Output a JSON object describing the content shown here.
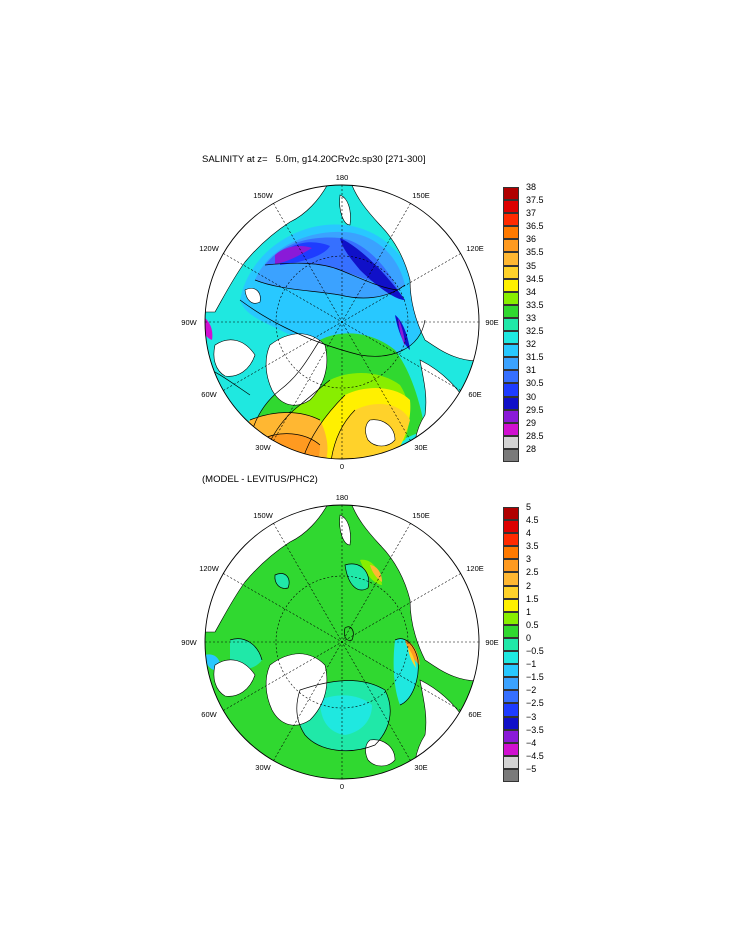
{
  "panels": [
    {
      "title": "SALINITY at z=   5.0m, g14.20CRv2c.sp30 [271-300]",
      "colorbar": {
        "labels": [
          "38",
          "37.5",
          "37",
          "36.5",
          "36",
          "35.5",
          "35",
          "34.5",
          "34",
          "33.5",
          "33",
          "32.5",
          "32",
          "31.5",
          "31",
          "30.5",
          "30",
          "29.5",
          "29",
          "28.5",
          "28"
        ],
        "colors": [
          "#b00000",
          "#dd0000",
          "#ff2a00",
          "#ff7a00",
          "#ff9a20",
          "#ffb732",
          "#ffd22a",
          "#fff000",
          "#88ee00",
          "#30d830",
          "#20e8a8",
          "#1fe8e0",
          "#28c8ff",
          "#3ba2ff",
          "#3670ff",
          "#1e3cff",
          "#1010c8",
          "#8a1ad8",
          "#d010d0",
          "#d4d4d4",
          "#7a7a7a"
        ]
      },
      "lon_labels": [
        "180",
        "150E",
        "120E",
        "90E",
        "60E",
        "30E",
        "0",
        "30W",
        "60W",
        "90W",
        "120W",
        "150W"
      ]
    },
    {
      "title": "(MODEL - LEVITUS/PHC2)",
      "colorbar": {
        "labels": [
          "5",
          "4.5",
          "4",
          "3.5",
          "3",
          "2.5",
          "2",
          "1.5",
          "1",
          "0.5",
          "0",
          "−0.5",
          "−1",
          "−1.5",
          "−2",
          "−2.5",
          "−3",
          "−3.5",
          "−4",
          "−4.5",
          "−5"
        ],
        "colors": [
          "#b00000",
          "#dd0000",
          "#ff2a00",
          "#ff7a00",
          "#ff9a20",
          "#ffb732",
          "#ffd22a",
          "#fff000",
          "#88ee00",
          "#30d830",
          "#20e8a8",
          "#1fe8e0",
          "#28c8ff",
          "#3ba2ff",
          "#3670ff",
          "#1e3cff",
          "#1010c8",
          "#8a1ad8",
          "#d010d0",
          "#d4d4d4",
          "#7a7a7a"
        ]
      },
      "lon_labels": [
        "180",
        "150E",
        "120E",
        "90E",
        "60E",
        "30E",
        "0",
        "30W",
        "60W",
        "90W",
        "120W",
        "150W"
      ]
    }
  ],
  "palette": {
    "land": "#ffffff",
    "coast": "#000000",
    "grid": "#000000"
  }
}
